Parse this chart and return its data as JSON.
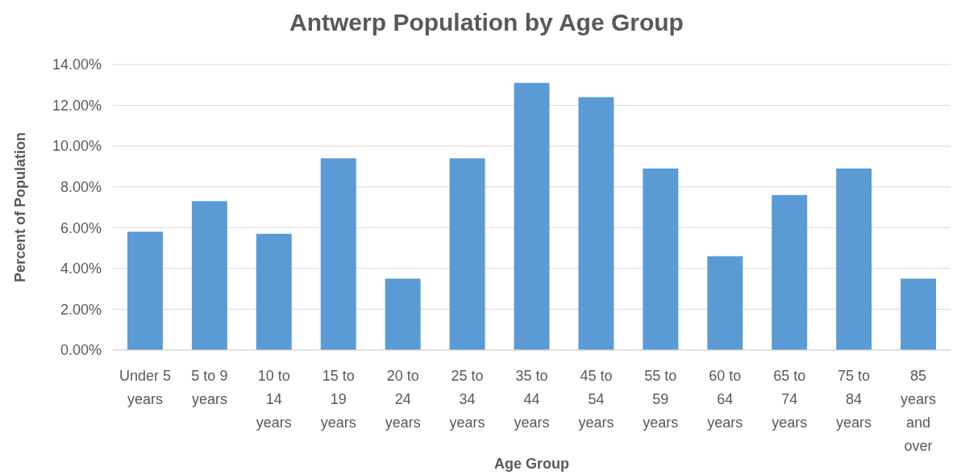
{
  "chart_data": {
    "type": "bar",
    "title": "Antwerp Population by Age Group",
    "xlabel": "Age Group",
    "ylabel": "Percent of Population",
    "categories": [
      "Under 5 years",
      "5 to 9 years",
      "10 to 14 years",
      "15 to 19 years",
      "20 to 24 years",
      "25 to 34 years",
      "35 to 44 years",
      "45 to 54 years",
      "55 to 59 years",
      "60 to 64 years",
      "65 to 74 years",
      "75 to 84 years",
      "85 years and over"
    ],
    "values": [
      5.8,
      7.3,
      5.7,
      9.4,
      3.5,
      9.4,
      13.1,
      12.4,
      8.9,
      4.6,
      7.6,
      8.9,
      3.5
    ],
    "color": "#5b9bd5",
    "ylim": [
      0,
      14
    ],
    "yticks": [
      {
        "value": 0,
        "label": "0.00%"
      },
      {
        "value": 2,
        "label": "2.00%"
      },
      {
        "value": 4,
        "label": "4.00%"
      },
      {
        "value": 6,
        "label": "6.00%"
      },
      {
        "value": 8,
        "label": "8.00%"
      },
      {
        "value": 10,
        "label": "10.00%"
      },
      {
        "value": 12,
        "label": "12.00%"
      },
      {
        "value": 14,
        "label": "14.00%"
      }
    ],
    "grid": "y"
  }
}
